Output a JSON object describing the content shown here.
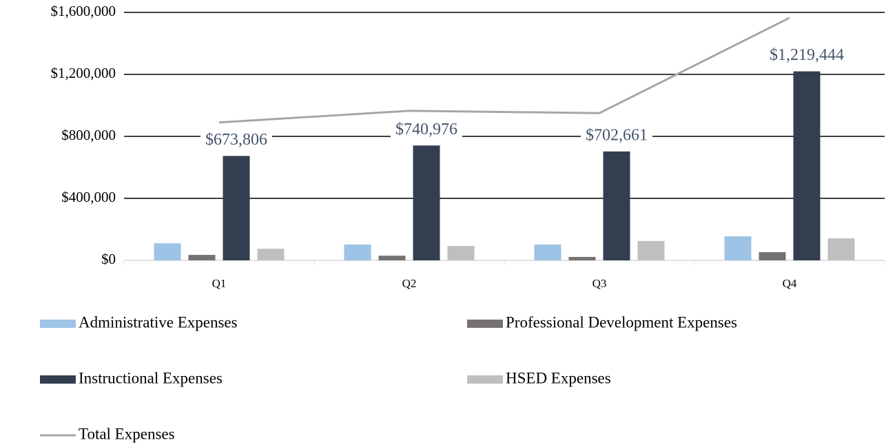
{
  "chart_data": {
    "type": "bar",
    "categories": [
      "Q1",
      "Q2",
      "Q3",
      "Q4"
    ],
    "series": [
      {
        "name": "Administrative Expenses",
        "color": "#9dc3e6",
        "values": [
          110000,
          102000,
          102000,
          155000
        ]
      },
      {
        "name": "Professional Development Expenses",
        "color": "#767171",
        "values": [
          35000,
          30000,
          22000,
          53000
        ]
      },
      {
        "name": "Instructional Expenses",
        "color": "#333f50",
        "values": [
          673806,
          740976,
          702661,
          1219444
        ],
        "value_labels": [
          "$673,806",
          "$740,976",
          "$702,661",
          "$1,219,444"
        ]
      },
      {
        "name": "HSED Expenses",
        "color": "#bfbfbf",
        "values": [
          75000,
          93000,
          125000,
          142000
        ]
      },
      {
        "name": "Total Expenses",
        "type": "line",
        "color": "#a6a6a6",
        "values": [
          890000,
          965000,
          950000,
          1565000
        ]
      }
    ],
    "ylim": [
      0,
      1600000
    ],
    "yticks": [
      {
        "value": 0,
        "label": "$0"
      },
      {
        "value": 400000,
        "label": "$400,000"
      },
      {
        "value": 800000,
        "label": "$800,000"
      },
      {
        "value": 1200000,
        "label": "$1,200,000"
      },
      {
        "value": 1600000,
        "label": "$1,600,000"
      }
    ],
    "grid": true,
    "legend": "bottom"
  }
}
